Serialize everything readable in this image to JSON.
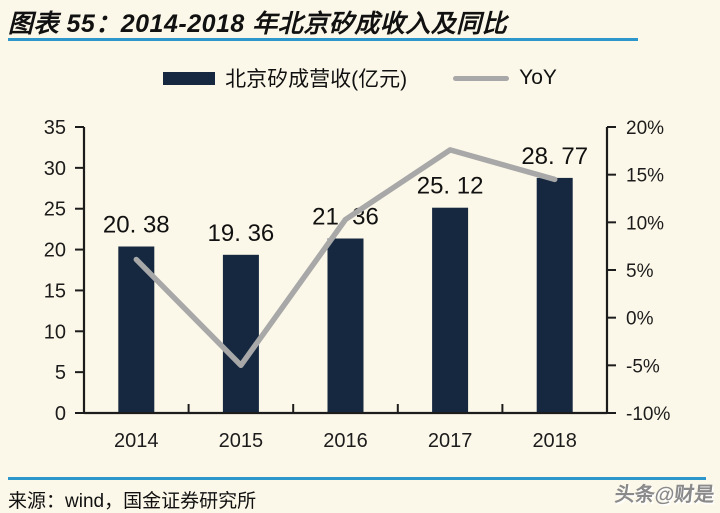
{
  "page": {
    "background": "#fcf8e9"
  },
  "header": {
    "title": "图表 55：2014-2018 年北京矽成收入及同比",
    "rule_color": "#2d96cb"
  },
  "legend": {
    "items": [
      {
        "label": "北京矽成营收(亿元)",
        "marker": "bar-swatch",
        "color": "#152840"
      },
      {
        "label": "YoY",
        "marker": "line-swatch",
        "color": "#a8a8a8"
      }
    ]
  },
  "chart_data": {
    "type": "bar",
    "subtype": "bar+line combo, dual axis",
    "title": "图表 55：2014-2018 年北京矽成收入及同比",
    "categories": [
      "2014",
      "2015",
      "2016",
      "2017",
      "2018"
    ],
    "series": [
      {
        "name": "北京矽成营收(亿元)",
        "kind": "bar",
        "axis": "left",
        "unit": "亿元",
        "values": [
          20.38,
          19.36,
          21.36,
          25.12,
          28.77
        ],
        "labels": [
          "20. 38",
          "19. 36",
          "21. 36",
          "25. 12",
          "28. 77"
        ],
        "color": "#152840"
      },
      {
        "name": "YoY",
        "kind": "line",
        "axis": "right",
        "unit": "%",
        "values": [
          6.1,
          -5.0,
          10.3,
          17.6,
          14.5
        ],
        "color": "#a8a8a8"
      }
    ],
    "left_axis": {
      "min": 0,
      "max": 35,
      "step": 5,
      "tick_labels": [
        "0",
        "5",
        "10",
        "15",
        "20",
        "25",
        "30",
        "35"
      ]
    },
    "right_axis": {
      "min": -10,
      "max": 20,
      "step": 5,
      "tick_labels": [
        "20%",
        "15%",
        "10%",
        "5%",
        "0%",
        "-5%",
        "-10%"
      ]
    },
    "grid": false,
    "legend_position": "top",
    "axis_color": "#1c1c1c"
  },
  "footer": {
    "source": "来源：wind，国金证券研究所",
    "watermark": "头条@财是",
    "rule_color": "#2d96cb"
  }
}
